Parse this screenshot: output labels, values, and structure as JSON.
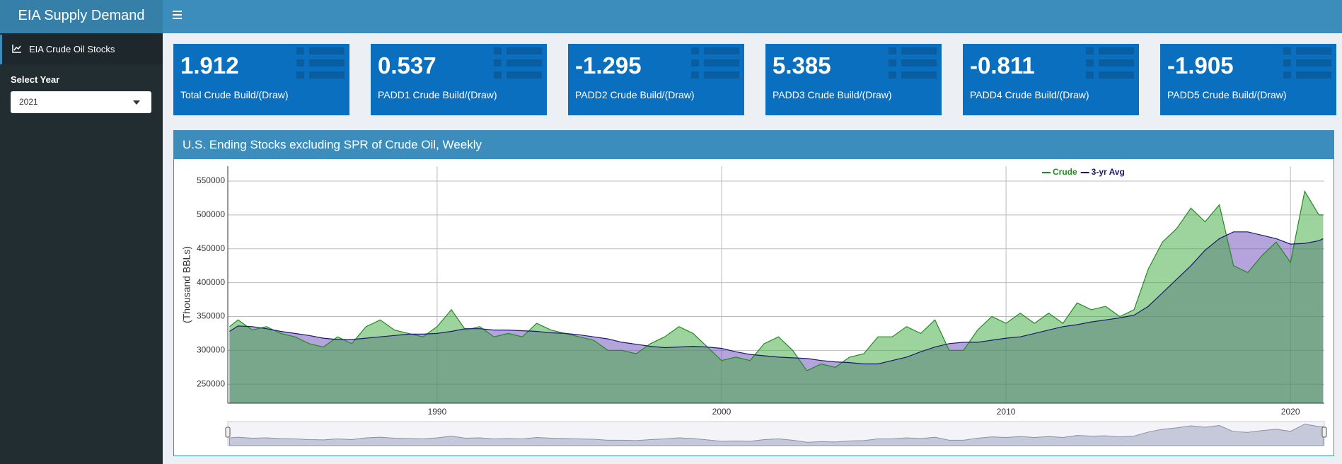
{
  "header": {
    "title": "EIA Supply Demand"
  },
  "sidebar": {
    "menu_item": "EIA Crude Oil Stocks",
    "select_label": "Select Year",
    "select_value": "2021"
  },
  "value_boxes": [
    {
      "value": "1.912",
      "label": "Total Crude Build/(Draw)"
    },
    {
      "value": "0.537",
      "label": "PADD1 Crude Build/(Draw)"
    },
    {
      "value": "-1.295",
      "label": "PADD2 Crude Build/(Draw)"
    },
    {
      "value": "5.385",
      "label": "PADD3 Crude Build/(Draw)"
    },
    {
      "value": "-0.811",
      "label": "PADD4 Crude Build/(Draw)"
    },
    {
      "value": "-1.905",
      "label": "PADD5 Crude Build/(Draw)"
    }
  ],
  "chart_box": {
    "title": "U.S. Ending Stocks excluding SPR of Crude Oil, Weekly"
  },
  "chart_data": {
    "type": "area",
    "y_label": "(Thousand BBLs)",
    "grid": true,
    "xlim": [
      1982.64,
      2021.19
    ],
    "xticks": [
      1990,
      2000,
      2010,
      2020
    ],
    "ylim": [
      222000,
      572000
    ],
    "yticks": [
      250000,
      300000,
      350000,
      400000,
      450000,
      500000,
      550000
    ],
    "x": [
      1982.7,
      1983,
      1983.5,
      1984,
      1984.5,
      1985,
      1985.5,
      1986,
      1986.5,
      1987,
      1987.5,
      1988,
      1988.5,
      1989,
      1989.5,
      1990,
      1990.5,
      1991,
      1991.5,
      1992,
      1992.5,
      1993,
      1993.5,
      1994,
      1994.5,
      1995,
      1995.5,
      1996,
      1996.5,
      1997,
      1997.5,
      1998,
      1998.5,
      1999,
      1999.5,
      2000,
      2000.5,
      2001,
      2001.5,
      2002,
      2002.5,
      2003,
      2003.5,
      2004,
      2004.5,
      2005,
      2005.5,
      2006,
      2006.5,
      2007,
      2007.5,
      2008,
      2008.5,
      2009,
      2009.5,
      2010,
      2010.5,
      2011,
      2011.5,
      2012,
      2012.5,
      2013,
      2013.5,
      2014,
      2014.5,
      2015,
      2015.5,
      2016,
      2016.5,
      2017,
      2017.5,
      2018,
      2018.5,
      2019,
      2019.5,
      2020,
      2020.5,
      2021,
      2021.15
    ],
    "series": [
      {
        "name": "Crude",
        "color": "#228b22",
        "fill": "rgba(60,170,60,0.5)",
        "values": [
          335000,
          345000,
          330000,
          335000,
          325000,
          320000,
          310000,
          305000,
          320000,
          310000,
          335000,
          345000,
          330000,
          325000,
          320000,
          335000,
          360000,
          330000,
          335000,
          320000,
          325000,
          320000,
          340000,
          330000,
          325000,
          320000,
          315000,
          300000,
          300000,
          295000,
          310000,
          320000,
          335000,
          325000,
          305000,
          285000,
          290000,
          285000,
          310000,
          320000,
          300000,
          270000,
          280000,
          275000,
          290000,
          295000,
          320000,
          320000,
          335000,
          325000,
          345000,
          300000,
          300000,
          330000,
          350000,
          340000,
          355000,
          340000,
          355000,
          340000,
          370000,
          360000,
          365000,
          350000,
          360000,
          420000,
          460000,
          480000,
          510000,
          490000,
          515000,
          425000,
          415000,
          440000,
          460000,
          430000,
          535000,
          500000,
          500000
        ]
      },
      {
        "name": "3-yr Avg",
        "color": "#191970",
        "fill": "rgba(120,90,190,0.55)",
        "values": [
          328000,
          336000,
          335000,
          332000,
          328000,
          325000,
          322000,
          318000,
          316000,
          316000,
          318000,
          320000,
          322000,
          324000,
          324000,
          325000,
          328000,
          332000,
          332000,
          330000,
          330000,
          329000,
          328000,
          326000,
          325000,
          323000,
          320000,
          317000,
          312000,
          309000,
          306000,
          304000,
          305000,
          306000,
          305000,
          303000,
          298000,
          294000,
          292000,
          290000,
          289000,
          288000,
          285000,
          283000,
          282000,
          280000,
          280000,
          285000,
          290000,
          298000,
          305000,
          310000,
          312000,
          312000,
          315000,
          318000,
          320000,
          325000,
          330000,
          335000,
          338000,
          342000,
          345000,
          348000,
          352000,
          365000,
          385000,
          405000,
          425000,
          448000,
          465000,
          475000,
          475000,
          470000,
          465000,
          457000,
          458000,
          462000,
          465000
        ]
      }
    ]
  }
}
